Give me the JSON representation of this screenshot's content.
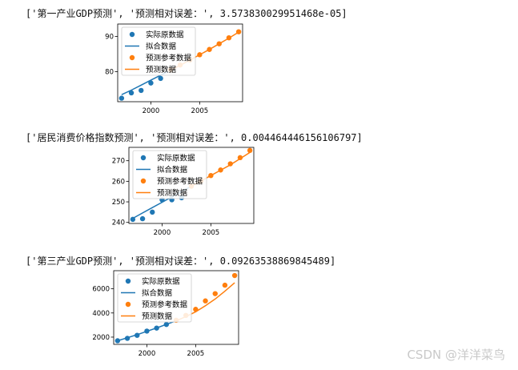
{
  "outputs": [
    "['第一产业GDP预测', '预测相对误差：', 3.573830029951468e-05]",
    "['居民消费价格指数预测', '预测相对误差：', 0.004464446156106797]",
    "['第三产业GDP预测', '预测相对误差：', 0.09263538869845489]"
  ],
  "watermark": "CSDN @洋洋菜鸟",
  "colors": {
    "actual": "#1f77b4",
    "forecast": "#ff7f0e"
  },
  "chart_data": [
    {
      "type": "scatter",
      "title": "",
      "xlabel": "",
      "ylabel": "",
      "xlim": [
        1996.6,
        2009.4
      ],
      "ylim": [
        71.5,
        93.5
      ],
      "xticks": [
        2000,
        2005
      ],
      "yticks": [
        80,
        90
      ],
      "grid": false,
      "legend_position": "top-left",
      "legend": [
        "实际原数据",
        "拟合数据",
        "预测参考数据",
        "预测数据"
      ],
      "series": [
        {
          "name": "实际原数据",
          "kind": "points",
          "color": "#1f77b4",
          "x": [
            1997,
            1998,
            1999,
            2000,
            2001
          ],
          "y": [
            72.5,
            74.0,
            74.7,
            76.8,
            78.1
          ]
        },
        {
          "name": "拟合数据",
          "kind": "line",
          "color": "#1f77b4",
          "x": [
            1997,
            1998,
            1999,
            2000,
            2001,
            2002
          ],
          "y": [
            73.5,
            74.8,
            76.2,
            77.6,
            79.0,
            80.4
          ]
        },
        {
          "name": "预测参考数据",
          "kind": "points",
          "color": "#ff7f0e",
          "x": [
            2002,
            2003,
            2004,
            2005,
            2006,
            2007,
            2008,
            2009
          ],
          "y": [
            80.5,
            81.9,
            83.3,
            84.8,
            86.3,
            87.9,
            89.6,
            91.3
          ]
        },
        {
          "name": "预测数据",
          "kind": "line",
          "color": "#ff7f0e",
          "x": [
            2002,
            2003,
            2004,
            2005,
            2006,
            2007,
            2008,
            2009
          ],
          "y": [
            80.4,
            81.8,
            83.3,
            84.8,
            86.3,
            87.9,
            89.5,
            91.2
          ]
        }
      ]
    },
    {
      "type": "scatter",
      "title": "",
      "xlabel": "",
      "ylabel": "",
      "xlim": [
        1996.6,
        2009.4
      ],
      "ylim": [
        239.5,
        276.5
      ],
      "xticks": [
        2000,
        2005
      ],
      "yticks": [
        240,
        250,
        260,
        270
      ],
      "grid": false,
      "legend_position": "top-left",
      "legend": [
        "实际原数据",
        "拟合数据",
        "预测参考数据",
        "预测数据"
      ],
      "series": [
        {
          "name": "实际原数据",
          "kind": "points",
          "color": "#1f77b4",
          "x": [
            1997,
            1998,
            1999,
            2000,
            2001,
            2002
          ],
          "y": [
            241.5,
            241.8,
            245.0,
            251.0,
            251.0,
            252.0
          ]
        },
        {
          "name": "拟合数据",
          "kind": "line",
          "color": "#1f77b4",
          "x": [
            1997,
            1998,
            1999,
            2000,
            2001,
            2002,
            2003
          ],
          "y": [
            242.0,
            244.6,
            247.2,
            249.8,
            252.4,
            255.0,
            257.6
          ]
        },
        {
          "name": "预测参考数据",
          "kind": "points",
          "color": "#ff7f0e",
          "x": [
            2003,
            2004,
            2005,
            2006,
            2007,
            2008,
            2009
          ],
          "y": [
            257.6,
            260.2,
            262.8,
            265.5,
            268.5,
            271.5,
            275.0
          ]
        },
        {
          "name": "预测数据",
          "kind": "line",
          "color": "#ff7f0e",
          "x": [
            2003,
            2004,
            2005,
            2006,
            2007,
            2008,
            2009
          ],
          "y": [
            257.6,
            260.2,
            262.8,
            265.4,
            268.0,
            271.0,
            274.0
          ]
        }
      ]
    },
    {
      "type": "scatter",
      "title": "",
      "xlabel": "",
      "ylabel": "",
      "xlim": [
        1996.6,
        2009.4
      ],
      "ylim": [
        1400,
        7500
      ],
      "xticks": [
        2000,
        2005
      ],
      "yticks": [
        2000,
        4000,
        6000
      ],
      "grid": false,
      "legend_position": "top-left",
      "legend": [
        "实际原数据",
        "拟合数据",
        "预测参考数据",
        "预测数据"
      ],
      "series": [
        {
          "name": "实际原数据",
          "kind": "points",
          "color": "#1f77b4",
          "x": [
            1997,
            1998,
            1999,
            2000,
            2001,
            2002
          ],
          "y": [
            1700,
            1900,
            2150,
            2500,
            2750,
            3050
          ]
        },
        {
          "name": "拟合数据",
          "kind": "line",
          "color": "#1f77b4",
          "x": [
            1997,
            1998,
            1999,
            2000,
            2001,
            2002,
            2003
          ],
          "y": [
            1700,
            1950,
            2200,
            2480,
            2760,
            3050,
            3350
          ]
        },
        {
          "name": "预测参考数据",
          "kind": "points",
          "color": "#ff7f0e",
          "x": [
            2003,
            2004,
            2005,
            2006,
            2007,
            2008,
            2009
          ],
          "y": [
            3400,
            3800,
            4300,
            5000,
            5600,
            6300,
            7100
          ]
        },
        {
          "name": "预测数据",
          "kind": "line",
          "color": "#ff7f0e",
          "x": [
            2003,
            2004,
            2005,
            2006,
            2007,
            2008,
            2009
          ],
          "y": [
            3350,
            3700,
            4100,
            4600,
            5150,
            5800,
            6500
          ]
        }
      ]
    }
  ]
}
